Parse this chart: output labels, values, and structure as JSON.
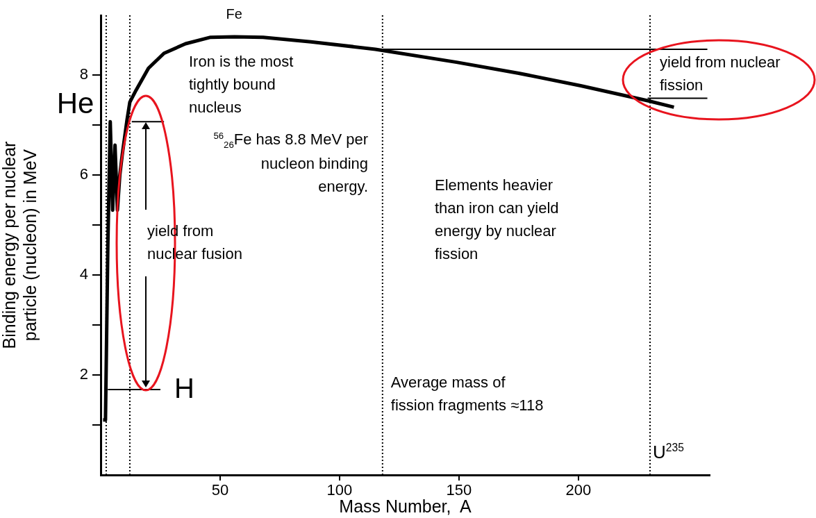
{
  "chart_data": {
    "type": "line",
    "xlabel": "Mass Number,  A",
    "ylabel": "Binding energy per nuclear particle (nucleon) in MeV",
    "series": [
      {
        "color": "#000000",
        "x": [
          1,
          2,
          3,
          4,
          5,
          6,
          7,
          8,
          9,
          11,
          12.2,
          14.8,
          20,
          26.5,
          35.5,
          46,
          56,
          68,
          88,
          115,
          149,
          175,
          201,
          229,
          240
        ],
        "values": [
          1.1,
          1.1,
          4.6,
          7.07,
          5.3,
          6.6,
          5.3,
          6.0,
          6.4,
          7.1,
          7.46,
          7.7,
          8.14,
          8.44,
          8.63,
          8.76,
          8.77,
          8.76,
          8.67,
          8.52,
          8.26,
          8.04,
          7.79,
          7.49,
          7.36
        ]
      },
      {
        "type": "line",
        "color": "#000000",
        "x": [
          115,
          254
        ],
        "values": [
          8.52,
          8.52
        ]
      },
      {
        "type": "line",
        "color": "#000000",
        "x": [
          229,
          254
        ],
        "values": [
          7.54,
          7.54
        ]
      },
      {
        "type": "line",
        "color": "#000000",
        "x": [
          13,
          26.5
        ],
        "values": [
          7.07,
          7.07
        ]
      },
      {
        "type": "line",
        "color": "#000000",
        "x": [
          3,
          25
        ],
        "values": [
          1.71,
          1.71
        ]
      }
    ],
    "xlim": [
      0,
      255
    ],
    "xticks": [
      50,
      100,
      150,
      200
    ],
    "ylim": [
      0,
      9.2
    ],
    "yticks": [
      {
        "value": 1,
        "label": null
      },
      2,
      {
        "value": 3,
        "label": null
      },
      4,
      {
        "value": 5,
        "label": null
      },
      6,
      {
        "value": 7,
        "label": null
      },
      8
    ],
    "ref_lines": [
      {
        "axis": "x",
        "value": 2.3,
        "line_style": "dotted",
        "color": "#000000"
      },
      {
        "axis": "x",
        "value": 12.2,
        "line_style": "dotted",
        "color": "#000000"
      },
      {
        "axis": "x",
        "value": 118,
        "line_style": "dotted",
        "color": "#000000"
      },
      {
        "axis": "x",
        "value": 230,
        "line_style": "dotted",
        "color": "#000000"
      }
    ],
    "annotations": [
      {
        "text": "Fe",
        "x": 56,
        "y": 8.77
      },
      {
        "text": "He",
        "x": 4,
        "y": 7.07
      },
      {
        "text": "H",
        "x": 25,
        "y": 1.71
      },
      "Iron is the most tightly bound nucleus",
      "$^{56}$$_{26}$Fe has 8.8 MeV per nucleon binding energy.",
      "yield from nuclear fusion",
      "Elements heavier than iron can yield energy by nuclear fission",
      {
        "text": "Average mass of fission fragments ≈118",
        "x": 118,
        "y": 1.8
      },
      {
        "text": "U$^{235}$",
        "x": 230,
        "y": 0
      },
      "yield from nuclear fission"
    ],
    "grid": false,
    "legend": false,
    "marker": "none",
    "line_style": "solid"
  }
}
